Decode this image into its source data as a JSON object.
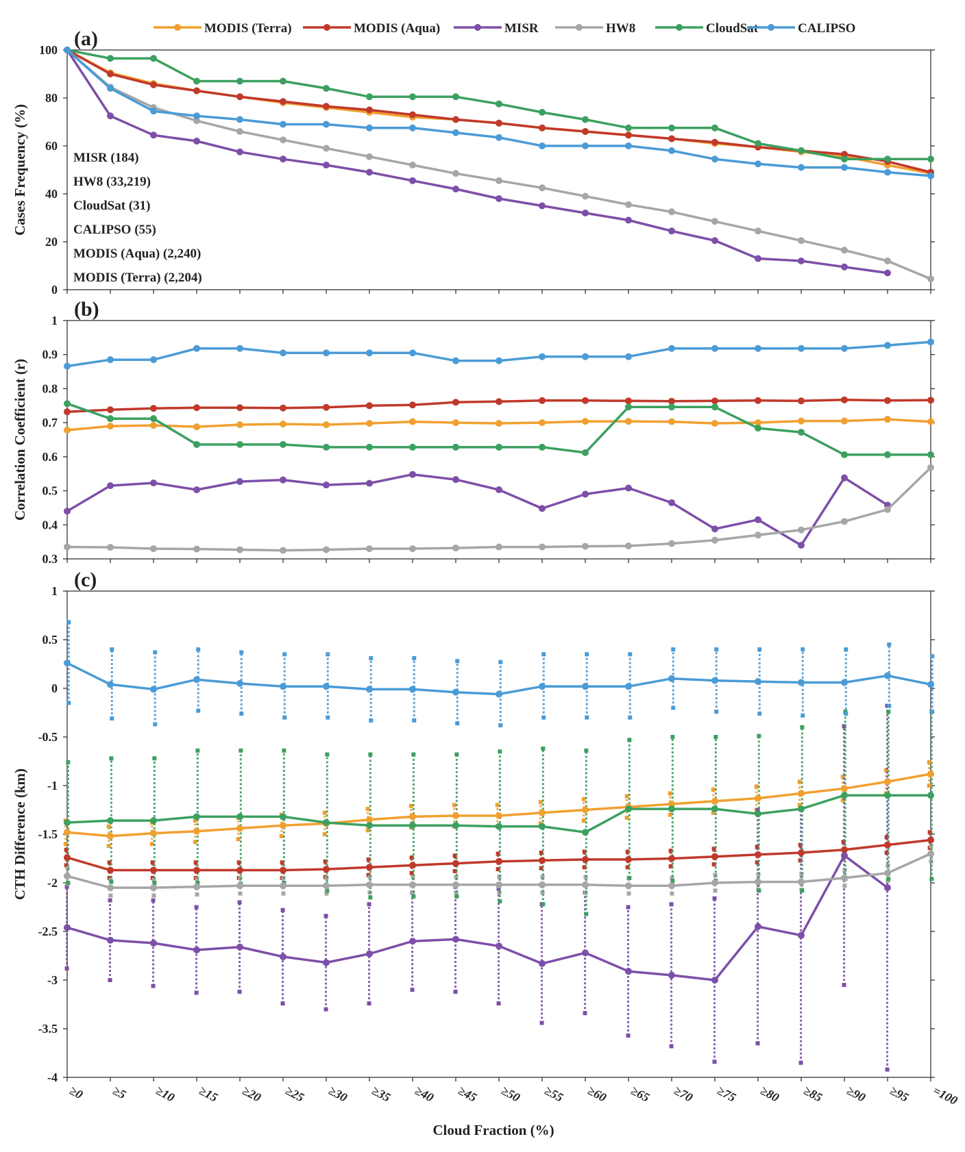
{
  "legend": [
    {
      "name": "MODIS (Terra)",
      "color": "#F0A030"
    },
    {
      "name": "MODIS (Aqua)",
      "color": "#C0392B"
    },
    {
      "name": "MISR",
      "color": "#7D4FA8"
    },
    {
      "name": "HW8",
      "color": "#A6A6A6"
    },
    {
      "name": "CloudSat",
      "color": "#3CA060"
    },
    {
      "name": "CALIPSO",
      "color": "#4A9BD6"
    }
  ],
  "xlabel": "Cloud Fraction (%)",
  "categories": [
    "≥0",
    "≥5",
    "≥10",
    "≥15",
    "≥20",
    "≥25",
    "≥30",
    "≥35",
    "≥40",
    "≥45",
    "≥50",
    "≥55",
    "≥60",
    "≥65",
    "≥70",
    "≥75",
    "≥80",
    "≥85",
    "≥90",
    "≥95",
    "=100"
  ],
  "chart_data": [
    {
      "type": "line",
      "panel_label": "(a)",
      "ylabel": "Cases Frequency (%)",
      "ylim": [
        0,
        100
      ],
      "yticks": [
        "0",
        "20",
        "40",
        "60",
        "80",
        "100"
      ],
      "notes": [
        "MISR (184)",
        "HW8 (33,219)",
        "CloudSat (31)",
        "CALIPSO (55)",
        "MODIS (Aqua) (2,240)",
        "MODIS (Terra) (2,204)"
      ],
      "series": [
        {
          "name": "MODIS (Terra)",
          "values": [
            100,
            90.5,
            86,
            83,
            80.5,
            78,
            76,
            74,
            72,
            71,
            69.5,
            67.5,
            66,
            64.5,
            63,
            61,
            59.5,
            57.5,
            55.5,
            52,
            48.5
          ]
        },
        {
          "name": "MODIS (Aqua)",
          "values": [
            100,
            90,
            85.5,
            83,
            80.5,
            78.5,
            76.5,
            75,
            73,
            71,
            69.5,
            67.5,
            66,
            64.5,
            63,
            61.5,
            59.5,
            58,
            56.5,
            53.5,
            49
          ]
        },
        {
          "name": "MISR",
          "values": [
            100,
            72.5,
            64.5,
            62,
            57.5,
            54.5,
            52,
            49,
            45.5,
            42,
            38,
            35,
            32,
            29,
            24.5,
            20.5,
            13,
            12,
            9.5,
            7,
            null
          ]
        },
        {
          "name": "HW8",
          "values": [
            100,
            84.5,
            76,
            70.5,
            66,
            62.5,
            59,
            55.5,
            52,
            48.5,
            45.5,
            42.5,
            39,
            35.5,
            32.5,
            28.5,
            24.5,
            20.5,
            16.5,
            12,
            4.5
          ]
        },
        {
          "name": "CloudSat",
          "values": [
            100,
            96.5,
            96.5,
            87,
            87,
            87,
            84,
            80.5,
            80.5,
            80.5,
            77.5,
            74,
            71,
            67.5,
            67.5,
            67.5,
            61,
            58,
            54.5,
            54.5,
            54.5
          ]
        },
        {
          "name": "CALIPSO",
          "values": [
            100,
            84,
            74.5,
            72.5,
            71,
            69,
            69,
            67.5,
            67.5,
            65.5,
            63.5,
            60,
            60,
            60,
            58,
            54.5,
            52.5,
            51,
            51,
            49,
            47.5
          ]
        }
      ]
    },
    {
      "type": "line",
      "panel_label": "(b)",
      "ylabel": "Correlation Coefficient (r)",
      "ylim": [
        0.3,
        1
      ],
      "yticks": [
        "0.3",
        "0.4",
        "0.5",
        "0.6",
        "0.7",
        "0.8",
        "0.9",
        "1"
      ],
      "series": [
        {
          "name": "MODIS (Terra)",
          "values": [
            0.678,
            0.69,
            0.692,
            0.688,
            0.694,
            0.696,
            0.694,
            0.698,
            0.703,
            0.7,
            0.698,
            0.7,
            0.704,
            0.704,
            0.703,
            0.698,
            0.7,
            0.705,
            0.705,
            0.71,
            0.703
          ]
        },
        {
          "name": "MODIS (Aqua)",
          "values": [
            0.732,
            0.738,
            0.742,
            0.744,
            0.744,
            0.743,
            0.745,
            0.75,
            0.752,
            0.76,
            0.762,
            0.765,
            0.765,
            0.764,
            0.763,
            0.764,
            0.765,
            0.764,
            0.767,
            0.765,
            0.766
          ]
        },
        {
          "name": "MISR",
          "values": [
            0.44,
            0.515,
            0.523,
            0.503,
            0.527,
            0.532,
            0.517,
            0.522,
            0.548,
            0.533,
            0.503,
            0.448,
            0.49,
            0.508,
            0.465,
            0.388,
            0.415,
            0.34,
            0.538,
            0.458,
            null
          ]
        },
        {
          "name": "HW8",
          "values": [
            0.335,
            0.334,
            0.33,
            0.329,
            0.327,
            0.325,
            0.327,
            0.33,
            0.33,
            0.332,
            0.335,
            0.335,
            0.337,
            0.338,
            0.345,
            0.355,
            0.37,
            0.385,
            0.41,
            0.445,
            0.568
          ]
        },
        {
          "name": "CloudSat",
          "values": [
            0.756,
            0.712,
            0.712,
            0.636,
            0.636,
            0.636,
            0.628,
            0.628,
            0.628,
            0.628,
            0.628,
            0.628,
            0.612,
            0.746,
            0.746,
            0.746,
            0.684,
            0.672,
            0.606,
            0.606,
            0.606
          ]
        },
        {
          "name": "CALIPSO",
          "values": [
            0.866,
            0.885,
            0.885,
            0.918,
            0.918,
            0.905,
            0.905,
            0.905,
            0.905,
            0.882,
            0.882,
            0.894,
            0.894,
            0.894,
            0.918,
            0.918,
            0.918,
            0.918,
            0.918,
            0.927,
            0.937
          ]
        }
      ]
    },
    {
      "type": "line",
      "panel_label": "(c)",
      "ylabel": "CTH Difference (km)",
      "ylim": [
        -4,
        1
      ],
      "yticks": [
        "-4",
        "-3.5",
        "-3",
        "-2.5",
        "-2",
        "-1.5",
        "-1",
        "-0.5",
        "0",
        "0.5",
        "1"
      ],
      "series": [
        {
          "name": "MODIS (Terra)",
          "values": [
            -1.48,
            -1.52,
            -1.49,
            -1.47,
            -1.44,
            -1.41,
            -1.39,
            -1.35,
            -1.32,
            -1.31,
            -1.31,
            -1.28,
            -1.25,
            -1.22,
            -1.19,
            -1.16,
            -1.13,
            -1.08,
            -1.03,
            -0.96,
            -0.88
          ],
          "range": [
            [
              -1.6,
              -1.36
            ],
            [
              -1.62,
              -1.42
            ],
            [
              -1.6,
              -1.38
            ],
            [
              -1.58,
              -1.36
            ],
            [
              -1.55,
              -1.33
            ],
            [
              -1.52,
              -1.3
            ],
            [
              -1.5,
              -1.28
            ],
            [
              -1.46,
              -1.24
            ],
            [
              -1.43,
              -1.21
            ],
            [
              -1.42,
              -1.2
            ],
            [
              -1.42,
              -1.2
            ],
            [
              -1.39,
              -1.17
            ],
            [
              -1.36,
              -1.14
            ],
            [
              -1.33,
              -1.11
            ],
            [
              -1.3,
              -1.08
            ],
            [
              -1.28,
              -1.04
            ],
            [
              -1.25,
              -1.01
            ],
            [
              -1.2,
              -0.96
            ],
            [
              -1.15,
              -0.91
            ],
            [
              -1.08,
              -0.84
            ],
            [
              -1.0,
              -0.76
            ]
          ]
        },
        {
          "name": "MODIS (Aqua)",
          "values": [
            -1.74,
            -1.87,
            -1.87,
            -1.87,
            -1.87,
            -1.87,
            -1.86,
            -1.84,
            -1.82,
            -1.8,
            -1.78,
            -1.77,
            -1.76,
            -1.76,
            -1.75,
            -1.73,
            -1.71,
            -1.69,
            -1.66,
            -1.61,
            -1.56
          ],
          "range": [
            [
              -1.82,
              -1.66
            ],
            [
              -1.95,
              -1.79
            ],
            [
              -1.95,
              -1.79
            ],
            [
              -1.95,
              -1.79
            ],
            [
              -1.95,
              -1.79
            ],
            [
              -1.95,
              -1.79
            ],
            [
              -1.94,
              -1.78
            ],
            [
              -1.92,
              -1.76
            ],
            [
              -1.9,
              -1.74
            ],
            [
              -1.88,
              -1.72
            ],
            [
              -1.86,
              -1.7
            ],
            [
              -1.85,
              -1.69
            ],
            [
              -1.84,
              -1.68
            ],
            [
              -1.84,
              -1.68
            ],
            [
              -1.83,
              -1.67
            ],
            [
              -1.81,
              -1.65
            ],
            [
              -1.79,
              -1.63
            ],
            [
              -1.77,
              -1.61
            ],
            [
              -1.74,
              -1.58
            ],
            [
              -1.69,
              -1.53
            ],
            [
              -1.64,
              -1.48
            ]
          ]
        },
        {
          "name": "MISR",
          "values": [
            -2.46,
            -2.59,
            -2.62,
            -2.69,
            -2.66,
            -2.76,
            -2.82,
            -2.73,
            -2.6,
            -2.58,
            -2.65,
            -2.83,
            -2.72,
            -2.91,
            -2.95,
            -3.0,
            -2.45,
            -2.54,
            -1.72,
            -2.05,
            null
          ],
          "range": [
            [
              -2.88,
              -2.04
            ],
            [
              -3.0,
              -2.18
            ],
            [
              -3.06,
              -2.18
            ],
            [
              -3.13,
              -2.25
            ],
            [
              -3.12,
              -2.2
            ],
            [
              -3.24,
              -2.28
            ],
            [
              -3.3,
              -2.34
            ],
            [
              -3.24,
              -2.22
            ],
            [
              -3.1,
              -2.1
            ],
            [
              -3.12,
              -2.04
            ],
            [
              -3.24,
              -2.06
            ],
            [
              -3.44,
              -2.22
            ],
            [
              -3.34,
              -2.1
            ],
            [
              -3.57,
              -2.25
            ],
            [
              -3.68,
              -2.22
            ],
            [
              -3.84,
              -2.16
            ],
            [
              -3.65,
              -1.25
            ],
            [
              -3.85,
              -1.23
            ],
            [
              -3.05,
              -0.39
            ],
            [
              -3.92,
              -0.18
            ],
            [
              null,
              null
            ]
          ]
        },
        {
          "name": "HW8",
          "values": [
            -1.93,
            -2.05,
            -2.05,
            -2.04,
            -2.03,
            -2.03,
            -2.03,
            -2.02,
            -2.02,
            -2.02,
            -2.02,
            -2.02,
            -2.02,
            -2.03,
            -2.03,
            -2.0,
            -1.99,
            -1.99,
            -1.95,
            -1.9,
            -1.7
          ],
          "range": [
            [
              -2.01,
              -1.85
            ],
            [
              -2.13,
              -1.97
            ],
            [
              -2.13,
              -1.97
            ],
            [
              -2.12,
              -1.96
            ],
            [
              -2.11,
              -1.95
            ],
            [
              -2.11,
              -1.95
            ],
            [
              -2.11,
              -1.95
            ],
            [
              -2.1,
              -1.94
            ],
            [
              -2.1,
              -1.94
            ],
            [
              -2.1,
              -1.94
            ],
            [
              -2.1,
              -1.94
            ],
            [
              -2.1,
              -1.94
            ],
            [
              -2.1,
              -1.94
            ],
            [
              -2.11,
              -1.95
            ],
            [
              -2.11,
              -1.95
            ],
            [
              -2.08,
              -1.92
            ],
            [
              -2.07,
              -1.91
            ],
            [
              -2.07,
              -1.91
            ],
            [
              -2.03,
              -1.87
            ],
            [
              -1.98,
              -1.82
            ],
            [
              -1.78,
              -1.62
            ]
          ]
        },
        {
          "name": "CloudSat",
          "values": [
            -1.38,
            -1.36,
            -1.36,
            -1.32,
            -1.32,
            -1.32,
            -1.38,
            -1.41,
            -1.41,
            -1.41,
            -1.42,
            -1.42,
            -1.48,
            -1.24,
            -1.24,
            -1.24,
            -1.29,
            -1.24,
            -1.1,
            -1.1,
            -1.1
          ],
          "range": [
            [
              -2.0,
              -0.76
            ],
            [
              -1.99,
              -0.72
            ],
            [
              -2.0,
              -0.72
            ],
            [
              -2.0,
              -0.64
            ],
            [
              -2.01,
              -0.64
            ],
            [
              -2.0,
              -0.64
            ],
            [
              -2.08,
              -0.68
            ],
            [
              -2.15,
              -0.68
            ],
            [
              -2.14,
              -0.68
            ],
            [
              -2.14,
              -0.68
            ],
            [
              -2.19,
              -0.65
            ],
            [
              -2.22,
              -0.62
            ],
            [
              -2.32,
              -0.64
            ],
            [
              -1.95,
              -0.53
            ],
            [
              -1.98,
              -0.5
            ],
            [
              -1.98,
              -0.5
            ],
            [
              -2.08,
              -0.49
            ],
            [
              -2.08,
              -0.4
            ],
            [
              -1.96,
              -0.24
            ],
            [
              -1.96,
              -0.24
            ],
            [
              -1.96,
              -0.24
            ]
          ]
        },
        {
          "name": "CALIPSO",
          "values": [
            0.26,
            0.04,
            -0.01,
            0.09,
            0.05,
            0.02,
            0.02,
            -0.01,
            -0.01,
            -0.04,
            -0.06,
            0.02,
            0.02,
            0.02,
            0.1,
            0.08,
            0.07,
            0.06,
            0.06,
            0.13,
            0.04
          ],
          "range": [
            [
              -0.15,
              0.68
            ],
            [
              -0.31,
              0.4
            ],
            [
              -0.37,
              0.37
            ],
            [
              -0.23,
              0.4
            ],
            [
              -0.26,
              0.37
            ],
            [
              -0.3,
              0.35
            ],
            [
              -0.3,
              0.35
            ],
            [
              -0.33,
              0.31
            ],
            [
              -0.33,
              0.31
            ],
            [
              -0.36,
              0.28
            ],
            [
              -0.38,
              0.27
            ],
            [
              -0.3,
              0.35
            ],
            [
              -0.3,
              0.35
            ],
            [
              -0.3,
              0.35
            ],
            [
              -0.2,
              0.4
            ],
            [
              -0.24,
              0.4
            ],
            [
              -0.26,
              0.4
            ],
            [
              -0.28,
              0.4
            ],
            [
              -0.26,
              0.4
            ],
            [
              -0.18,
              0.45
            ],
            [
              -0.24,
              0.33
            ]
          ]
        }
      ]
    }
  ]
}
